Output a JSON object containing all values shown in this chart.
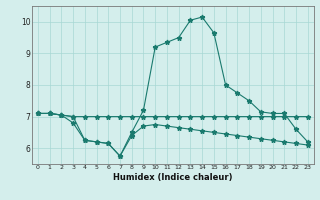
{
  "x": [
    0,
    1,
    2,
    3,
    4,
    5,
    6,
    7,
    8,
    9,
    10,
    11,
    12,
    13,
    14,
    15,
    16,
    17,
    18,
    19,
    20,
    21,
    22,
    23
  ],
  "line1": [
    7.1,
    7.1,
    7.05,
    7.0,
    7.0,
    7.0,
    7.0,
    7.0,
    7.0,
    7.0,
    7.0,
    7.0,
    7.0,
    7.0,
    7.0,
    7.0,
    7.0,
    7.0,
    7.0,
    7.0,
    7.0,
    7.0,
    7.0,
    7.0
  ],
  "line2": [
    7.1,
    7.1,
    7.05,
    7.0,
    6.25,
    6.2,
    6.15,
    5.75,
    6.4,
    6.7,
    6.75,
    6.7,
    6.65,
    6.6,
    6.55,
    6.5,
    6.45,
    6.4,
    6.35,
    6.3,
    6.25,
    6.2,
    6.15,
    6.1
  ],
  "line3": [
    7.1,
    7.1,
    7.05,
    6.8,
    6.25,
    6.2,
    6.15,
    5.75,
    6.5,
    7.2,
    9.2,
    9.35,
    9.5,
    10.05,
    10.15,
    9.65,
    8.0,
    7.75,
    7.5,
    7.15,
    7.1,
    7.1,
    6.6,
    6.2
  ],
  "color": "#1a7a6e",
  "bg_color": "#d4eeec",
  "grid_color": "#a8d8d4",
  "xlabel": "Humidex (Indice chaleur)",
  "ylim": [
    5.5,
    10.5
  ],
  "xlim": [
    -0.5,
    23.5
  ],
  "yticks": [
    6,
    7,
    8,
    9,
    10
  ],
  "xticks": [
    0,
    1,
    2,
    3,
    4,
    5,
    6,
    7,
    8,
    9,
    10,
    11,
    12,
    13,
    14,
    15,
    16,
    17,
    18,
    19,
    20,
    21,
    22,
    23
  ]
}
